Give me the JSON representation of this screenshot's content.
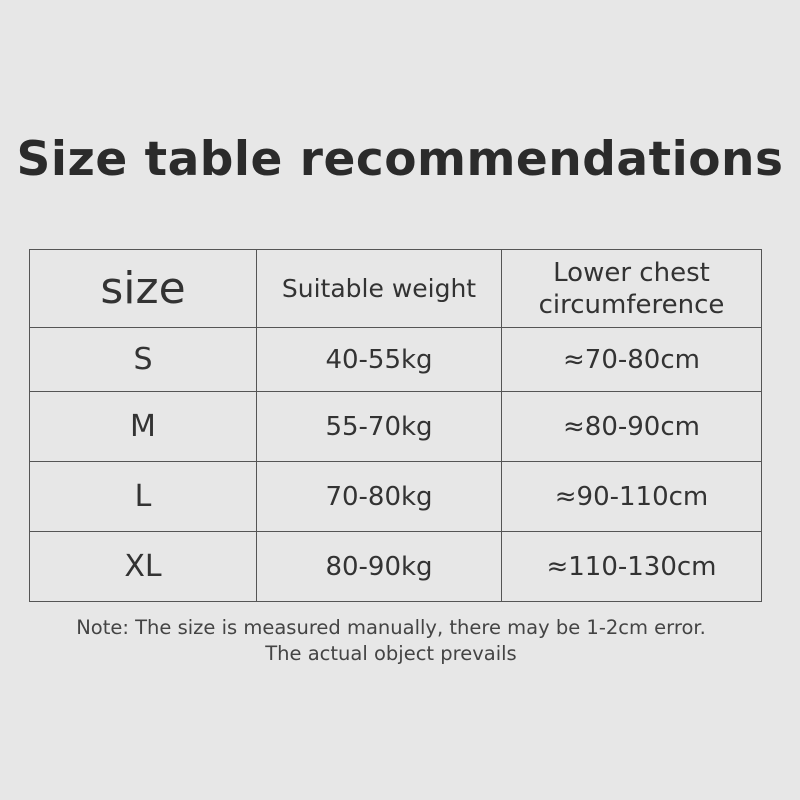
{
  "title": "Size table recommendations",
  "table": {
    "headers": [
      "size",
      "Suitable weight",
      "Lower chest circumference"
    ],
    "rows": [
      {
        "size": "S",
        "weight": "40-55kg",
        "chest": "≈70-80cm"
      },
      {
        "size": "M",
        "weight": "55-70kg",
        "chest": "≈80-90cm"
      },
      {
        "size": "L",
        "weight": "70-80kg",
        "chest": "≈90-110cm"
      },
      {
        "size": "XL",
        "weight": "80-90kg",
        "chest": "≈110-130cm"
      }
    ]
  },
  "note": {
    "line1": "Note: The size is measured manually, there may be 1-2cm error.",
    "line2": "The actual object prevails"
  }
}
